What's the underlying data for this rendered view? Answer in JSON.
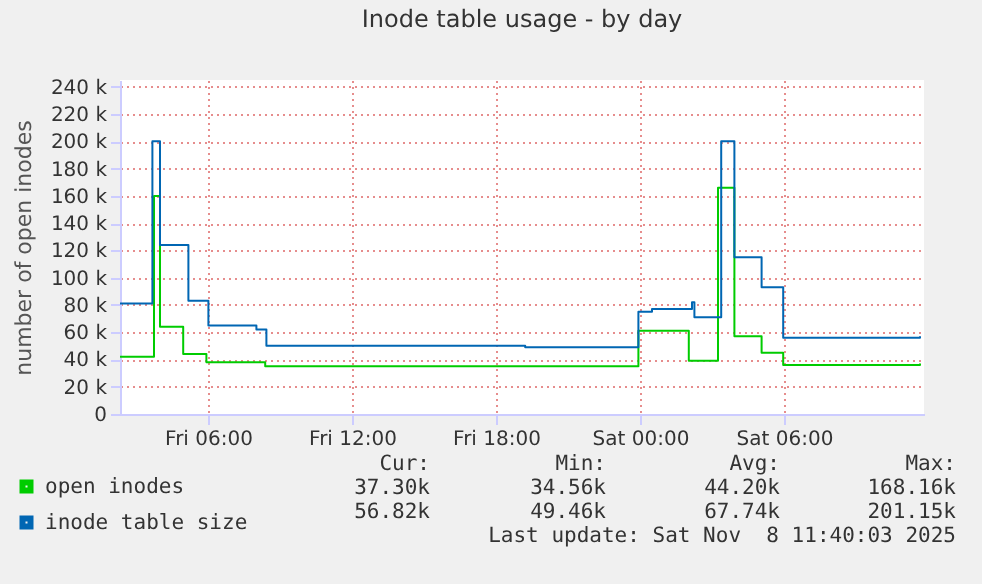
{
  "chart_data": {
    "type": "step",
    "title": "Inode table usage - by day",
    "ylabel": "number of open inodes",
    "xlim": [
      "2025-11-07T02:20",
      "2025-11-08T11:50"
    ],
    "xticks": [
      {
        "value": "2025-11-07T06:00",
        "label": "Fri 06:00"
      },
      {
        "value": "2025-11-07T12:00",
        "label": "Fri 12:00"
      },
      {
        "value": "2025-11-07T18:00",
        "label": "Fri 18:00"
      },
      {
        "value": "2025-11-08T00:00",
        "label": "Sat 00:00"
      },
      {
        "value": "2025-11-08T06:00",
        "label": "Sat 06:00"
      }
    ],
    "ylim": [
      0,
      245000
    ],
    "yticks": [
      {
        "value": 0,
        "label": "0"
      },
      {
        "value": 20000,
        "label": "20 k"
      },
      {
        "value": 40000,
        "label": "40 k"
      },
      {
        "value": 60000,
        "label": "60 k"
      },
      {
        "value": 80000,
        "label": "80 k"
      },
      {
        "value": 100000,
        "label": "100 k"
      },
      {
        "value": 120000,
        "label": "120 k"
      },
      {
        "value": 140000,
        "label": "140 k"
      },
      {
        "value": 160000,
        "label": "160 k"
      },
      {
        "value": 180000,
        "label": "180 k"
      },
      {
        "value": 200000,
        "label": "200 k"
      },
      {
        "value": 220000,
        "label": "220 k"
      },
      {
        "value": 240000,
        "label": "240 k"
      }
    ],
    "series": [
      {
        "name": "open inodes",
        "color": "#00cc00",
        "x": [
          "2025-11-07T02:20",
          "2025-11-07T03:45",
          "2025-11-07T04:00",
          "2025-11-07T04:58",
          "2025-11-07T05:56",
          "2025-11-07T08:23",
          "2025-11-07T23:56",
          "2025-11-08T02:02",
          "2025-11-08T03:15",
          "2025-11-08T03:56",
          "2025-11-08T05:04",
          "2025-11-08T05:58",
          "2025-11-08T11:40"
        ],
        "values": [
          42000,
          160000,
          64000,
          44000,
          38000,
          35000,
          61000,
          39000,
          166000,
          57000,
          45000,
          36000,
          37000
        ]
      },
      {
        "name": "inode table size",
        "color": "#0066b3",
        "x": [
          "2025-11-07T02:20",
          "2025-11-07T03:41",
          "2025-11-07T04:00",
          "2025-11-07T05:11",
          "2025-11-07T06:01",
          "2025-11-07T08:01",
          "2025-11-07T08:26",
          "2025-11-07T19:13",
          "2025-11-07T23:56",
          "2025-11-08T00:30",
          "2025-11-08T02:10",
          "2025-11-08T02:16",
          "2025-11-08T03:23",
          "2025-11-08T03:56",
          "2025-11-08T05:04",
          "2025-11-08T05:58",
          "2025-11-08T11:40"
        ],
        "values": [
          81000,
          200000,
          124000,
          83000,
          65000,
          62000,
          50000,
          49000,
          75000,
          77000,
          82000,
          71000,
          200000,
          115000,
          93000,
          56000,
          57000
        ]
      }
    ],
    "annotations": [
      "Cur:",
      "Min:",
      "Avg:",
      "Max:",
      "37.30k",
      "34.56k",
      "44.20k",
      "168.16k",
      "56.82k",
      "49.46k",
      "67.74k",
      "201.15k",
      "Last update: Sat Nov  8 11:40:03 2025"
    ],
    "grid": true,
    "legend": "bottom left",
    "marker": "none",
    "line_style": "solid"
  }
}
